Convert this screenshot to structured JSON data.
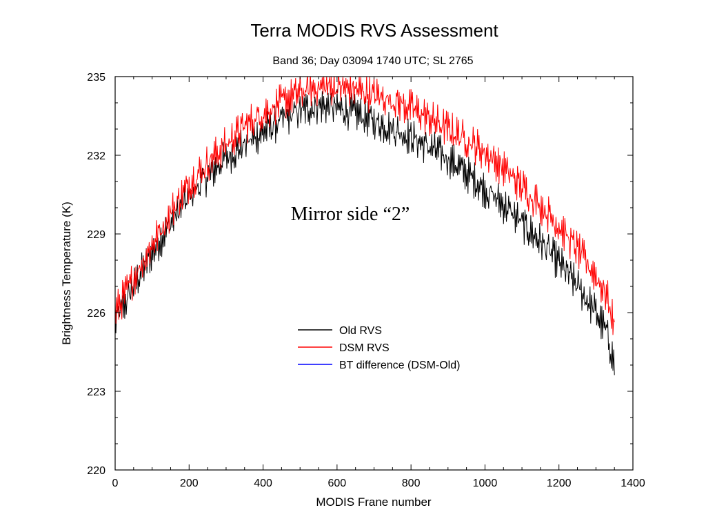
{
  "chart_data": {
    "type": "line",
    "title": "Terra MODIS RVS Assessment",
    "subtitle": "Band 36; Day 03094 1740 UTC; SL 2765",
    "xlabel": "MODIS Frane number",
    "ylabel": "Brightness Temperature (K)",
    "xlim": [
      0,
      1400
    ],
    "ylim": [
      220,
      235
    ],
    "x_ticks": [
      0,
      200,
      400,
      600,
      800,
      1000,
      1200,
      1400
    ],
    "y_ticks": [
      220,
      223,
      226,
      229,
      232,
      235
    ],
    "x_tick_labels": [
      "0",
      "200",
      "400",
      "600",
      "800",
      "1000",
      "1200",
      "1400"
    ],
    "y_tick_labels": [
      "220",
      "223",
      "226",
      "229",
      "232",
      "235"
    ],
    "grid": false,
    "legend_position": "lower-center",
    "annotation": "Mirror side “2”",
    "series": [
      {
        "name": "Old RVS",
        "color": "#000000",
        "x": [
          0,
          50,
          100,
          150,
          200,
          250,
          300,
          350,
          400,
          450,
          500,
          550,
          600,
          650,
          700,
          750,
          800,
          850,
          900,
          950,
          1000,
          1050,
          1100,
          1150,
          1200,
          1250,
          1300,
          1330,
          1350
        ],
        "values": [
          225.6,
          227.0,
          228.3,
          229.4,
          230.4,
          231.2,
          231.9,
          232.4,
          232.9,
          233.3,
          233.7,
          233.9,
          233.8,
          233.6,
          233.3,
          233.0,
          232.7,
          232.3,
          231.9,
          231.3,
          230.7,
          230.1,
          229.4,
          228.7,
          227.9,
          227.0,
          226.0,
          225.2,
          224.0
        ]
      },
      {
        "name": "DSM RVS",
        "color": "#ff0000",
        "x": [
          0,
          50,
          100,
          150,
          200,
          250,
          300,
          350,
          400,
          450,
          500,
          550,
          600,
          650,
          700,
          750,
          800,
          850,
          900,
          950,
          1000,
          1050,
          1100,
          1150,
          1200,
          1250,
          1300,
          1330,
          1350
        ],
        "values": [
          226.0,
          227.3,
          228.6,
          229.8,
          230.9,
          231.7,
          232.4,
          233.1,
          233.6,
          234.0,
          234.4,
          234.6,
          234.6,
          234.5,
          234.3,
          234.1,
          233.8,
          233.4,
          233.0,
          232.6,
          232.1,
          231.5,
          230.8,
          230.1,
          229.3,
          228.4,
          227.4,
          226.6,
          225.5
        ]
      },
      {
        "name": "BT difference (DSM-Old)",
        "color": "#0000ff",
        "x": [],
        "values": []
      }
    ]
  }
}
